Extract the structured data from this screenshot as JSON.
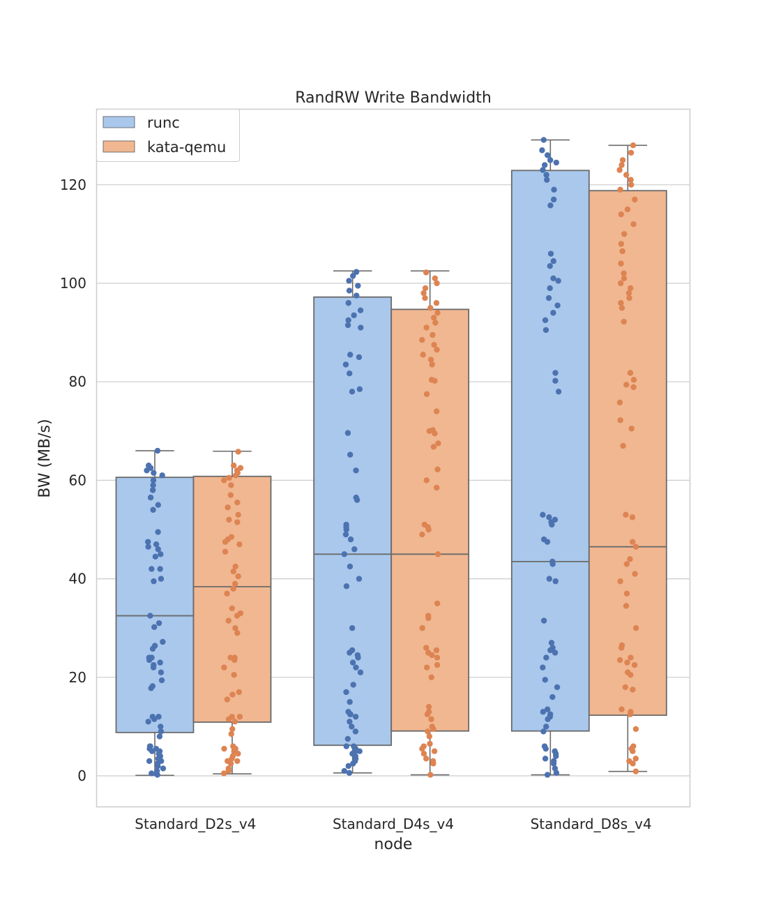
{
  "chart_data": {
    "type": "box",
    "title": "RandRW Write Bandwidth",
    "xlabel": "node",
    "ylabel": "BW (MB/s)",
    "ylim": [
      -6.5,
      135.5
    ],
    "yticks": [
      0,
      20,
      40,
      60,
      80,
      100,
      120
    ],
    "categories": [
      "Standard_D2s_v4",
      "Standard_D4s_v4",
      "Standard_D8s_v4"
    ],
    "grid": true,
    "legend_position": "top-left",
    "series": [
      {
        "name": "runc",
        "box_color": "#a9c8ec",
        "point_color": "#4c72b0",
        "boxes": [
          {
            "whisker_low": 0.1,
            "q1": 8.8,
            "median": 32.5,
            "q3": 60.6,
            "whisker_high": 66.0
          },
          {
            "whisker_low": 0.6,
            "q1": 6.2,
            "median": 45.0,
            "q3": 97.2,
            "whisker_high": 102.5
          },
          {
            "whisker_low": 0.2,
            "q1": 9.1,
            "median": 43.5,
            "q3": 122.9,
            "whisker_high": 129.1
          }
        ]
      },
      {
        "name": "kata-qemu",
        "box_color": "#f0b791",
        "point_color": "#dd8452",
        "boxes": [
          {
            "whisker_low": 0.4,
            "q1": 10.9,
            "median": 38.4,
            "q3": 60.8,
            "whisker_high": 65.9
          },
          {
            "whisker_low": 0.2,
            "q1": 9.1,
            "median": 45.0,
            "q3": 94.7,
            "whisker_high": 102.5
          },
          {
            "whisker_low": 0.9,
            "q1": 12.3,
            "median": 46.5,
            "q3": 118.8,
            "whisker_high": 128.0
          }
        ]
      }
    ],
    "points_per_group": [
      [
        [
          0.2,
          0.5,
          1,
          1.5,
          2,
          2.5,
          3,
          3,
          3.5,
          4,
          4.5,
          5,
          5,
          5.5,
          5.5,
          6,
          6,
          8,
          9,
          10,
          11,
          11.5,
          12,
          12,
          17.8,
          18.2,
          19.4,
          21,
          22,
          22.5,
          23,
          23.5,
          24,
          24,
          25.8,
          26.4,
          27.2,
          30.2,
          31,
          32.5,
          39.5,
          40,
          42,
          42,
          44.5,
          45,
          46,
          46.5,
          47,
          47.5,
          49.5,
          54,
          55,
          56.5,
          58,
          59,
          60,
          61,
          61.5,
          62,
          62.5,
          63,
          66
        ],
        [
          0.5,
          1,
          1.5,
          2.5,
          3,
          3,
          3.5,
          4,
          4.5,
          5,
          5.5,
          5.5,
          6,
          8.5,
          9.5,
          11,
          11.5,
          12,
          12,
          15.5,
          16.5,
          17,
          20.5,
          22,
          23.5,
          24,
          24,
          29,
          30,
          31.5,
          32.5,
          33,
          34,
          37,
          38,
          39,
          40.5,
          41.5,
          42.5,
          45.5,
          47,
          47.5,
          48,
          48.5,
          51.5,
          52,
          53,
          54.5,
          55.5,
          57,
          59,
          60,
          60.5,
          61,
          61.5,
          62,
          62.5,
          63,
          65.8
        ]
      ],
      [
        [
          0.6,
          1,
          2,
          2.5,
          3,
          3.5,
          4,
          4.5,
          5,
          5,
          5.5,
          6,
          6,
          7.5,
          9,
          10,
          11,
          12,
          12.5,
          12.5,
          13,
          15,
          17,
          18.5,
          21,
          22,
          23,
          24,
          24.5,
          25,
          25.5,
          30,
          38.5,
          40,
          42.5,
          45,
          46,
          48,
          49,
          50,
          50.5,
          51,
          56,
          56.5,
          62,
          65.2,
          69.6,
          78,
          78.5,
          81.7,
          83.5,
          85,
          85.5,
          91,
          91.5,
          92.5,
          93.5,
          94.5,
          96,
          97.5,
          98.5,
          99.5,
          100.5,
          101.5,
          102.3
        ],
        [
          0.2,
          2.5,
          3,
          3.5,
          4.5,
          5,
          5.5,
          6,
          6.5,
          8,
          9,
          9.5,
          10,
          11.5,
          12.5,
          13,
          14,
          20,
          22,
          22.5,
          24,
          24.5,
          25,
          25.5,
          26,
          30,
          32,
          32.5,
          35,
          45,
          49,
          50,
          50.5,
          51,
          58.5,
          60,
          62.2,
          66.8,
          67.5,
          69.5,
          70,
          70.2,
          74,
          77.5,
          80.2,
          80.4,
          83.5,
          84.5,
          85.5,
          86.5,
          87.5,
          88.5,
          89.5,
          91,
          92,
          93,
          94,
          95,
          96,
          97,
          98,
          99,
          100,
          101,
          102.2
        ]
      ],
      [
        [
          0.2,
          0.6,
          1.5,
          2.5,
          3,
          3.5,
          4,
          4.5,
          5,
          5.5,
          6,
          9,
          10,
          11.5,
          12,
          12.5,
          13,
          13.5,
          16,
          18,
          19.5,
          22,
          24,
          25,
          25.5,
          26,
          27,
          31.5,
          39.5,
          40,
          43,
          43.5,
          47.5,
          48,
          51,
          51.5,
          52,
          52.5,
          53,
          78,
          80.2,
          81.8,
          90.5,
          92.5,
          94,
          95.5,
          97,
          99,
          100.5,
          101,
          103.5,
          104.5,
          106,
          115.8,
          117,
          119,
          121,
          122,
          123,
          124,
          124.5,
          125,
          126,
          127,
          129.1
        ],
        [
          0.9,
          2.5,
          3,
          3.5,
          5,
          5.5,
          6,
          9.5,
          12.5,
          13,
          13.5,
          17.5,
          18,
          20.5,
          21,
          22.5,
          23,
          23.5,
          24,
          26,
          26.5,
          30,
          34.5,
          37,
          39.5,
          41,
          43,
          44,
          46.5,
          47.5,
          52.5,
          53,
          67,
          70.5,
          72.2,
          75.8,
          78.9,
          79.4,
          80.4,
          81.8,
          92.2,
          95,
          96,
          97,
          98,
          99,
          100,
          101,
          102,
          104,
          106.5,
          108,
          110,
          112,
          114,
          115,
          117,
          119,
          120,
          121,
          122,
          123,
          124,
          125,
          126.5,
          128
        ]
      ]
    ]
  }
}
